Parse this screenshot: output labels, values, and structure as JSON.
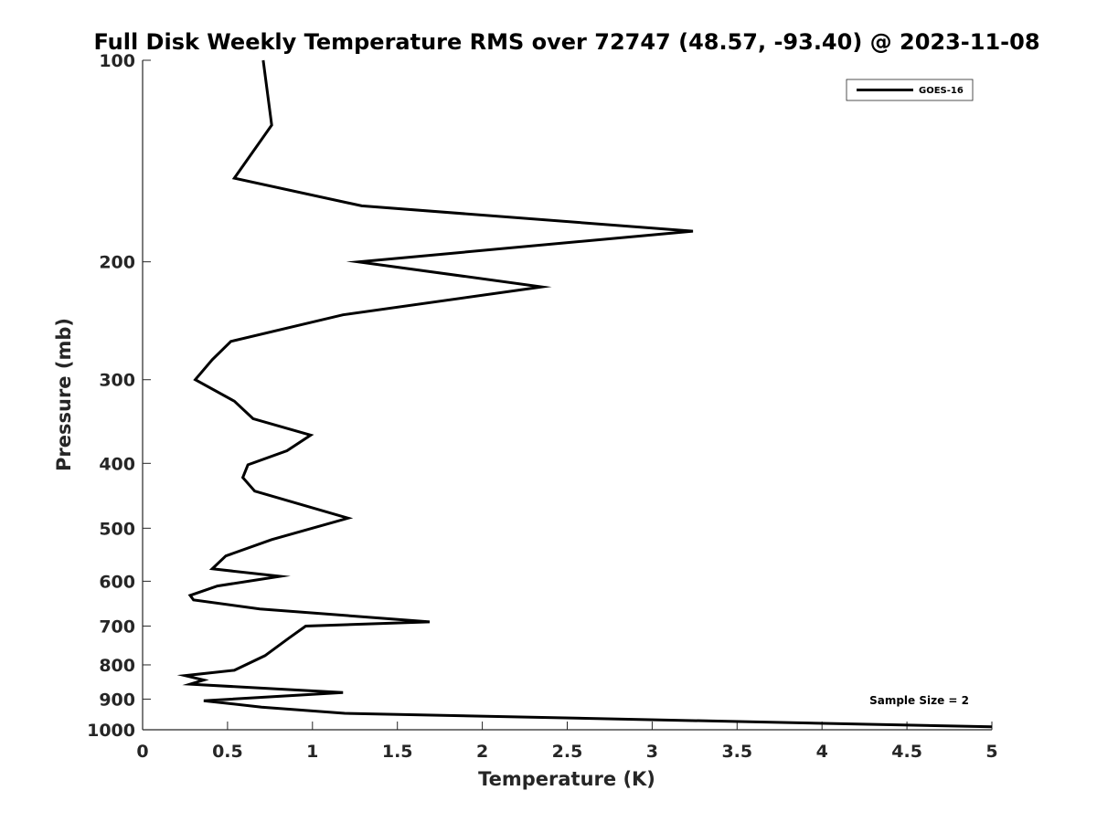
{
  "chart_data": {
    "type": "line",
    "title": "Full Disk Weekly Temperature RMS over 72747 (48.57, -93.40) @ 2023-11-08",
    "xlabel": "Temperature (K)",
    "ylabel": "Pressure (mb)",
    "xlim": [
      0,
      5
    ],
    "ylim": [
      100,
      1000
    ],
    "y_scale": "log",
    "y_direction": "reversed",
    "x_ticks": [
      "0",
      "0.5",
      "1",
      "1.5",
      "2",
      "2.5",
      "3",
      "3.5",
      "4",
      "4.5",
      "5"
    ],
    "x_tick_values": [
      0,
      0.5,
      1,
      1.5,
      2,
      2.5,
      3,
      3.5,
      4,
      4.5,
      5
    ],
    "y_ticks": [
      "100",
      "200",
      "300",
      "400",
      "500",
      "600",
      "700",
      "800",
      "900",
      "1000"
    ],
    "y_tick_values": [
      100,
      200,
      300,
      400,
      500,
      600,
      700,
      800,
      900,
      1000
    ],
    "grid": false,
    "legend_position": "top-right",
    "annotation": "Sample Size = 2",
    "line_color": "#000000",
    "series": [
      {
        "name": "GOES-16",
        "x": [
          0.71,
          0.76,
          0.54,
          1.29,
          3.24,
          1.27,
          2.35,
          1.18,
          0.52,
          0.41,
          0.31,
          0.54,
          0.65,
          0.99,
          0.85,
          0.62,
          0.59,
          0.66,
          1.21,
          0.76,
          0.49,
          0.41,
          0.81,
          0.44,
          0.28,
          0.3,
          0.69,
          1.69,
          0.96,
          0.86,
          0.72,
          0.54,
          0.25,
          0.36,
          0.28,
          1.18,
          0.36,
          0.7,
          1.19,
          5.0
        ],
        "y": [
          100,
          125,
          150,
          165,
          180,
          200,
          218,
          240,
          263,
          280,
          300,
          323,
          343,
          363,
          383,
          402,
          420,
          440,
          483,
          520,
          550,
          575,
          590,
          610,
          630,
          640,
          660,
          690,
          700,
          730,
          775,
          815,
          830,
          843,
          855,
          880,
          905,
          925,
          945,
          990
        ]
      }
    ]
  }
}
